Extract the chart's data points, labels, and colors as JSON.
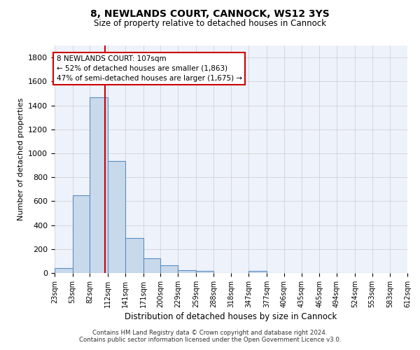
{
  "title": "8, NEWLANDS COURT, CANNOCK, WS12 3YS",
  "subtitle": "Size of property relative to detached houses in Cannock",
  "xlabel": "Distribution of detached houses by size in Cannock",
  "ylabel": "Number of detached properties",
  "bin_edges": [
    23,
    53,
    82,
    112,
    141,
    171,
    200,
    229,
    259,
    288,
    318,
    347,
    377,
    406,
    435,
    465,
    494,
    524,
    553,
    583,
    612
  ],
  "bar_heights": [
    40,
    650,
    1470,
    935,
    290,
    125,
    65,
    25,
    15,
    0,
    0,
    15,
    0,
    0,
    0,
    0,
    0,
    0,
    0,
    0
  ],
  "bar_color": "#c9d9ec",
  "bar_edge_color": "#5a8fc3",
  "grid_color": "#cccccc",
  "background_color": "#eef2fb",
  "vline_x": 107,
  "vline_color": "#cc0000",
  "annotation_text": "8 NEWLANDS COURT: 107sqm\n← 52% of detached houses are smaller (1,863)\n47% of semi-detached houses are larger (1,675) →",
  "annotation_box_color": "#cc0000",
  "ylim": [
    0,
    1900
  ],
  "yticks": [
    0,
    200,
    400,
    600,
    800,
    1000,
    1200,
    1400,
    1600,
    1800
  ],
  "footer_line1": "Contains HM Land Registry data © Crown copyright and database right 2024.",
  "footer_line2": "Contains public sector information licensed under the Open Government Licence v3.0."
}
